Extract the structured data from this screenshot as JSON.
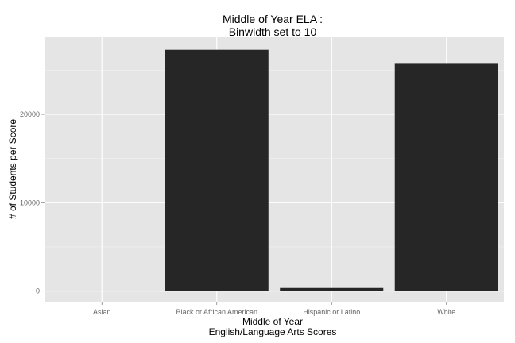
{
  "chart_data": {
    "type": "bar",
    "title": [
      "Middle of Year ELA :",
      "Binwidth set to 10"
    ],
    "xlabel": [
      "Middle of Year",
      "English/Language Arts Scores"
    ],
    "ylabel": "# of Students per Score",
    "categories": [
      "Asian",
      "Black or African American",
      "Hispanic or Latino",
      "White"
    ],
    "values": [
      0,
      27300,
      350,
      25800
    ],
    "ylim": [
      -1200,
      28800
    ],
    "yticks": [
      0,
      10000,
      20000
    ],
    "ytick_labels": [
      "0",
      "10000",
      "20000"
    ],
    "grid": true,
    "legend": "none",
    "colors": {
      "panel": "#E5E5E5",
      "grid_major": "#FFFFFF",
      "grid_minor": "#F2F2F2",
      "bar": "#262626",
      "tick_text": "#666666"
    }
  }
}
